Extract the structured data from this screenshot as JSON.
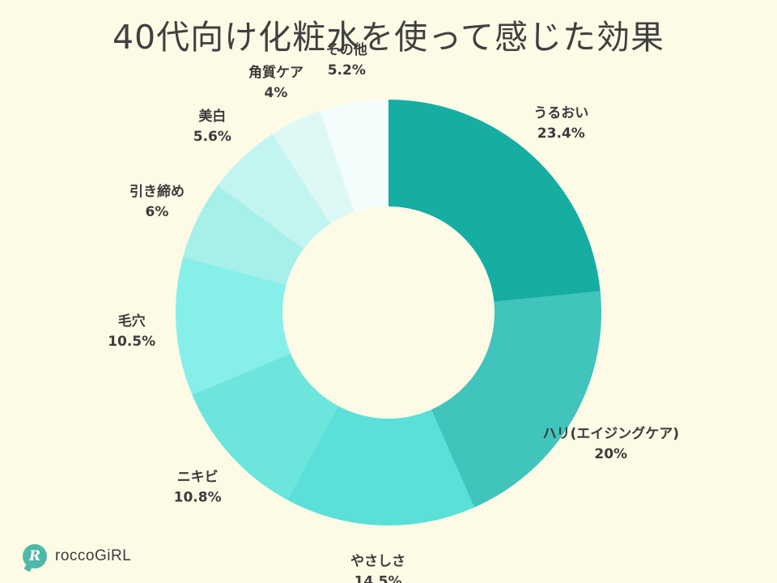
{
  "chart_data": {
    "type": "pie",
    "title": "40代向け化粧水を使って感じた効果",
    "unit": "%",
    "categories": [
      "うるおい",
      "ハリ(エイジングケア)",
      "やさしさ",
      "ニキビ",
      "毛穴",
      "引き締め",
      "美白",
      "角質ケア",
      "その他"
    ],
    "values": [
      23.4,
      20,
      14.5,
      10.8,
      10.5,
      6,
      5.6,
      4,
      5.2
    ],
    "value_labels": [
      "23.4%",
      "20%",
      "14.5%",
      "10.8%",
      "10.5%",
      "6%",
      "5.6%",
      "4%",
      "5.2%"
    ],
    "colors": [
      "#16ada3",
      "#40c4bc",
      "#5be0d9",
      "#6ce6dd",
      "#86efea",
      "#a7efe9",
      "#c2f5f2",
      "#def8f5",
      "#f3fdfc"
    ],
    "donut": true,
    "start_angle": "top",
    "direction": "clockwise",
    "legend": "none"
  },
  "logo": {
    "mark": "R",
    "text": "roccoGiRL",
    "color": "#4fb8a8"
  }
}
